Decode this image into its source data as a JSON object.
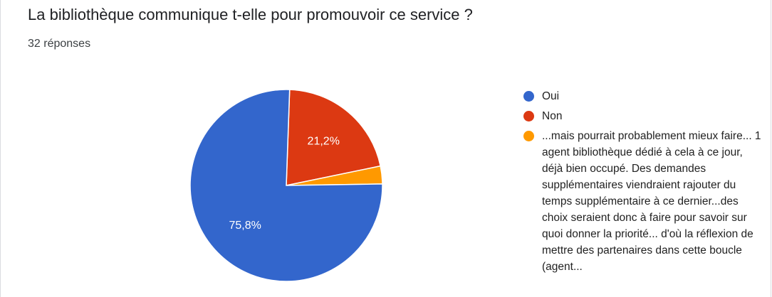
{
  "question": {
    "title": "La bibliothèque communique t-elle pour promouvoir ce service ?",
    "response_count": "32 réponses"
  },
  "colors": {
    "Oui": "#3366cc",
    "Non": "#dc3912",
    "other": "#ff9900"
  },
  "chart_data": {
    "type": "pie",
    "categories": [
      "Oui",
      "Non",
      "...mais pourrait probablement mieux faire... 1 agent bibliothèque dédié à cela à ce jour, déjà bien occupé. Des demandes supplémentaires viendraient rajouter du temps supplémentaire à ce dernier...des choix seraient donc à faire pour savoir sur quoi donner la priorité... d'où la réflexion de mettre des partenaires dans cette boucle (agent..."
    ],
    "values": [
      75.8,
      21.2,
      3.0
    ],
    "slice_labels": [
      "75,8%",
      "21,2%",
      ""
    ],
    "legend_position": "right"
  }
}
